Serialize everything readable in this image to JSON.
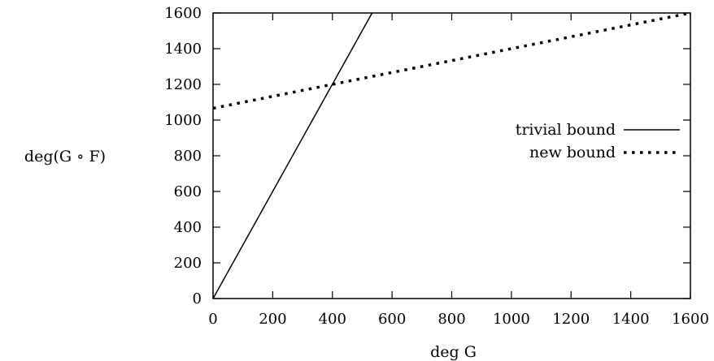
{
  "chart_data": {
    "type": "line",
    "xlabel": "deg G",
    "ylabel": "deg(G ∘ F)",
    "xlim": [
      0,
      1600
    ],
    "ylim": [
      0,
      1600
    ],
    "xticks": [
      0,
      200,
      400,
      600,
      800,
      1000,
      1200,
      1400,
      1600
    ],
    "yticks": [
      0,
      200,
      400,
      600,
      800,
      1000,
      1200,
      1400,
      1600
    ],
    "legend_position": "right",
    "series": [
      {
        "name": "trivial bound",
        "style": "solid",
        "x": [
          0,
          533
        ],
        "y": [
          0,
          1600
        ]
      },
      {
        "name": "new bound",
        "style": "dotted",
        "x": [
          0,
          400,
          1600
        ],
        "y": [
          1066,
          1200,
          1600
        ]
      }
    ]
  }
}
